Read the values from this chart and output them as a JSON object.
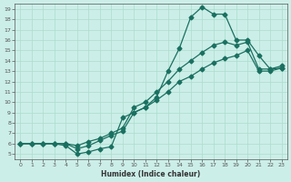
{
  "xlabel": "Humidex (Indice chaleur)",
  "ylabel": "",
  "bg_color": "#cceee8",
  "grid_color": "#aaddcc",
  "line_color": "#1a7060",
  "xlim": [
    -0.5,
    23.5
  ],
  "ylim": [
    4.5,
    19.5
  ],
  "xticks": [
    0,
    1,
    2,
    3,
    4,
    5,
    6,
    7,
    8,
    9,
    10,
    11,
    12,
    13,
    14,
    15,
    16,
    17,
    18,
    19,
    20,
    21,
    22,
    23
  ],
  "yticks": [
    5,
    6,
    7,
    8,
    9,
    10,
    11,
    12,
    13,
    14,
    15,
    16,
    17,
    18,
    19
  ],
  "line1_x": [
    0,
    1,
    2,
    3,
    4,
    5,
    6,
    7,
    8,
    9,
    10,
    11,
    12,
    13,
    14,
    15,
    16,
    17,
    18,
    19,
    20,
    21,
    22,
    23
  ],
  "line1_y": [
    6,
    6,
    6,
    6,
    5.8,
    5,
    5.2,
    5.5,
    5.7,
    8.5,
    9,
    9.5,
    10.5,
    13,
    15.2,
    18.2,
    19.2,
    18.5,
    18.5,
    16,
    16,
    14.5,
    13.2,
    13.3
  ],
  "line2_x": [
    0,
    1,
    2,
    3,
    4,
    5,
    6,
    7,
    8,
    9,
    10,
    11,
    12,
    13,
    14,
    15,
    16,
    17,
    18,
    19,
    20,
    21,
    22,
    23
  ],
  "line2_y": [
    6,
    6,
    6,
    6,
    6,
    5.8,
    6.2,
    6.5,
    7,
    7.5,
    9.5,
    10,
    11,
    12,
    13.2,
    14,
    14.8,
    15.5,
    15.8,
    15.5,
    15.8,
    13.2,
    13.2,
    13.5
  ],
  "line3_x": [
    0,
    1,
    2,
    3,
    4,
    5,
    6,
    7,
    8,
    9,
    10,
    11,
    12,
    13,
    14,
    15,
    16,
    17,
    18,
    19,
    20,
    21,
    22,
    23
  ],
  "line3_y": [
    6,
    6,
    6,
    6,
    6,
    5.5,
    5.8,
    6.3,
    6.8,
    7.2,
    9,
    9.5,
    10.2,
    11,
    12,
    12.5,
    13.2,
    13.8,
    14.2,
    14.5,
    15,
    13,
    13,
    13.3
  ]
}
